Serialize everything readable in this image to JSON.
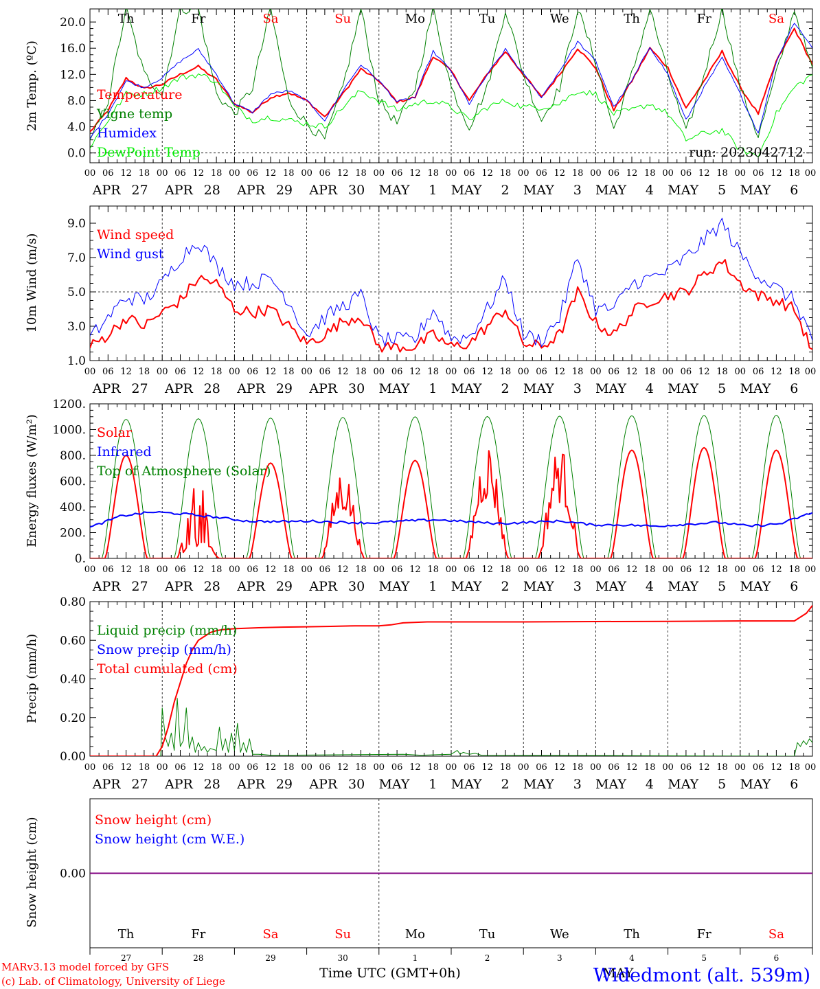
{
  "chart_data": [
    {
      "type": "line",
      "ylabel": "2m Temp. (ºC)",
      "ylim": [
        -1.5,
        22.0
      ],
      "yticks": [
        "0.0",
        "4.0",
        "8.0",
        "12.0",
        "16.0",
        "20.0"
      ],
      "ytick_values": [
        0,
        4,
        8,
        12,
        16,
        20
      ],
      "reference_line": 0,
      "day_of_week": [
        {
          "label": "Th",
          "color": "#000000"
        },
        {
          "label": "Fr",
          "color": "#000000"
        },
        {
          "label": "Sa",
          "color": "#ff0000"
        },
        {
          "label": "Su",
          "color": "#ff0000"
        },
        {
          "label": "Mo",
          "color": "#000000"
        },
        {
          "label": "Tu",
          "color": "#000000"
        },
        {
          "label": "We",
          "color": "#000000"
        },
        {
          "label": "Th",
          "color": "#000000"
        },
        {
          "label": "Fr",
          "color": "#000000"
        },
        {
          "label": "Sa",
          "color": "#ff0000"
        }
      ],
      "annotation": "run: 2023042712",
      "x": [
        0,
        6,
        12,
        18,
        24,
        30,
        36,
        42,
        48,
        54,
        60,
        66,
        72,
        78,
        84,
        90,
        96,
        102,
        108,
        114,
        120,
        126,
        132,
        138,
        144,
        150,
        156,
        162,
        168,
        174,
        180,
        186,
        192,
        198,
        204,
        210,
        216,
        222,
        228,
        234,
        240
      ],
      "series": [
        {
          "name": "Temperature",
          "color": "#ff0000",
          "width": 2,
          "values": [
            3.2,
            6.5,
            11.4,
            9.8,
            10.5,
            12.0,
            13.2,
            11.2,
            7.5,
            6.2,
            8.5,
            9.2,
            8.0,
            5.5,
            9.0,
            12.8,
            11.0,
            7.8,
            8.5,
            14.8,
            12.5,
            8.0,
            12.0,
            15.5,
            12.0,
            8.5,
            12.0,
            16.0,
            13.0,
            6.5,
            11.0,
            16.0,
            13.0,
            6.8,
            11.0,
            15.5,
            10.0,
            6.0,
            14.0,
            19.0,
            13.5
          ]
        },
        {
          "name": "Vigne temp",
          "color": "#008000",
          "width": 1,
          "values": [
            1.5,
            8.0,
            22.0,
            12.0,
            9.0,
            22.0,
            22.0,
            9.0,
            6.0,
            10.0,
            22.0,
            8.0,
            4.5,
            2.0,
            10.0,
            22.0,
            8.0,
            4.5,
            10.0,
            22.0,
            10.0,
            4.0,
            10.0,
            22.0,
            12.0,
            5.0,
            10.0,
            22.0,
            14.0,
            3.5,
            12.0,
            22.0,
            12.0,
            3.0,
            12.0,
            22.0,
            10.0,
            2.5,
            12.0,
            22.0,
            12.5
          ]
        },
        {
          "name": "Humidex",
          "color": "#0000ff",
          "width": 1,
          "values": [
            2.2,
            6.0,
            11.0,
            10.0,
            11.5,
            14.0,
            15.8,
            12.0,
            7.5,
            6.2,
            9.0,
            9.5,
            8.0,
            5.0,
            9.5,
            13.5,
            11.0,
            7.8,
            8.5,
            15.5,
            12.5,
            7.5,
            12.0,
            15.8,
            12.0,
            8.5,
            12.5,
            17.0,
            14.0,
            7.0,
            11.0,
            16.2,
            12.0,
            5.0,
            10.0,
            14.5,
            9.0,
            3.0,
            14.0,
            20.0,
            16.0
          ]
        },
        {
          "name": "DewPoint Temp",
          "color": "#00ee00",
          "width": 1,
          "values": [
            1.0,
            5.0,
            9.0,
            9.0,
            10.0,
            11.5,
            12.0,
            11.0,
            7.0,
            5.0,
            5.5,
            5.0,
            4.5,
            4.0,
            7.0,
            9.5,
            8.0,
            6.5,
            7.5,
            8.0,
            7.0,
            5.0,
            7.0,
            8.0,
            7.0,
            7.0,
            7.5,
            9.5,
            9.0,
            6.0,
            6.5,
            7.5,
            6.0,
            2.0,
            3.0,
            3.5,
            0.5,
            -0.5,
            6.0,
            10.0,
            12.0
          ]
        }
      ]
    },
    {
      "type": "line",
      "ylabel": "10m Wind (m/s)",
      "ylim": [
        1.0,
        10.0
      ],
      "yticks": [
        "1.0",
        "3.0",
        "5.0",
        "7.0",
        "9.0"
      ],
      "ytick_values": [
        1,
        3,
        5,
        7,
        9
      ],
      "reference_line": 5,
      "x": [
        0,
        6,
        12,
        18,
        24,
        30,
        36,
        42,
        48,
        54,
        60,
        66,
        72,
        78,
        84,
        90,
        96,
        102,
        108,
        114,
        120,
        126,
        132,
        138,
        144,
        150,
        156,
        162,
        168,
        174,
        180,
        186,
        192,
        198,
        204,
        210,
        216,
        222,
        228,
        234,
        240
      ],
      "series": [
        {
          "name": "Wind speed",
          "color": "#ff0000",
          "width": 2,
          "values": [
            1.8,
            2.5,
            3.5,
            3.0,
            3.8,
            4.5,
            5.8,
            5.5,
            4.0,
            3.8,
            4.0,
            3.0,
            2.0,
            2.5,
            3.3,
            3.6,
            1.8,
            1.8,
            1.8,
            2.5,
            1.8,
            2.0,
            3.0,
            4.0,
            2.0,
            1.8,
            2.5,
            5.0,
            3.2,
            2.5,
            3.8,
            4.5,
            4.8,
            5.0,
            6.0,
            6.8,
            5.5,
            4.8,
            4.5,
            4.0,
            1.5
          ]
        },
        {
          "name": "Wind gust",
          "color": "#0000ff",
          "width": 1,
          "values": [
            2.3,
            3.5,
            4.7,
            4.5,
            5.5,
            7.0,
            8.0,
            6.5,
            5.5,
            5.5,
            5.8,
            4.5,
            2.5,
            3.5,
            4.2,
            4.8,
            2.2,
            2.2,
            2.2,
            4.0,
            2.3,
            2.4,
            4.0,
            5.8,
            2.5,
            2.2,
            3.5,
            7.0,
            4.0,
            4.0,
            5.5,
            5.8,
            6.2,
            7.0,
            8.0,
            9.0,
            7.2,
            6.0,
            5.2,
            4.5,
            2.3
          ]
        }
      ]
    },
    {
      "type": "line",
      "ylabel": "Energy fluxes (W/m²)",
      "ylim": [
        0,
        1200
      ],
      "yticks": [
        "0.",
        "200.",
        "400.",
        "600.",
        "800.",
        "1000.",
        "1200."
      ],
      "ytick_values": [
        0,
        200,
        400,
        600,
        800,
        1000,
        1200
      ],
      "toa_peaks": [
        1080,
        1085,
        1090,
        1095,
        1100,
        1102,
        1105,
        1108,
        1110,
        1112
      ],
      "solar_peaks": [
        800,
        570,
        740,
        620,
        760,
        800,
        780,
        840,
        860,
        840
      ],
      "infrared_values": [
        240,
        330,
        360,
        345,
        320,
        290,
        285,
        290,
        280,
        275,
        290,
        300,
        285,
        270,
        280,
        290,
        260,
        260,
        250,
        265,
        280,
        250,
        270,
        355
      ],
      "series": [
        {
          "name": "Solar",
          "color": "#ff0000",
          "width": 2
        },
        {
          "name": "Infrared",
          "color": "#0000ff",
          "width": 2
        },
        {
          "name": "Top of Atmosphere (Solar)",
          "color": "#008000",
          "width": 1
        }
      ]
    },
    {
      "type": "line",
      "ylabel": "Precip (mm/h)",
      "ylim": [
        0.0,
        0.8
      ],
      "yticks": [
        "0.00",
        "0.20",
        "0.40",
        "0.60",
        "0.80"
      ],
      "ytick_values": [
        0.0,
        0.2,
        0.4,
        0.6,
        0.8
      ],
      "x": [
        0,
        22,
        24,
        26,
        28,
        30,
        32,
        34,
        36,
        38,
        40,
        42,
        44,
        48,
        56,
        64,
        72,
        80,
        88,
        96,
        100,
        104,
        112,
        120,
        132,
        144,
        168,
        192,
        216,
        228,
        234,
        238,
        240
      ],
      "series": [
        {
          "name": "Liquid precip (mm/h)",
          "color": "#008000",
          "width": 1
        },
        {
          "name": "Snow precip (mm/h)",
          "color": "#0000ff",
          "width": 1
        },
        {
          "name": "Total cumulated (cm)",
          "color": "#ff0000",
          "width": 2,
          "values": [
            0.0,
            0.0,
            0.05,
            0.15,
            0.28,
            0.38,
            0.48,
            0.55,
            0.6,
            0.62,
            0.64,
            0.65,
            0.655,
            0.66,
            0.665,
            0.668,
            0.67,
            0.672,
            0.675,
            0.675,
            0.68,
            0.69,
            0.695,
            0.695,
            0.695,
            0.695,
            0.697,
            0.698,
            0.7,
            0.7,
            0.7,
            0.74,
            0.78
          ]
        }
      ],
      "liquid_spikes": [
        [
          23.5,
          0.0
        ],
        [
          24,
          0.25
        ],
        [
          25,
          0.1
        ],
        [
          26,
          0.05
        ],
        [
          27,
          0.12
        ],
        [
          28,
          0.03
        ],
        [
          29,
          0.3
        ],
        [
          30,
          0.05
        ],
        [
          31,
          0.08
        ],
        [
          32,
          0.25
        ],
        [
          33,
          0.04
        ],
        [
          34,
          0.1
        ],
        [
          35,
          0.02
        ],
        [
          36,
          0.07
        ],
        [
          37,
          0.03
        ],
        [
          38,
          0.05
        ],
        [
          39,
          0.02
        ],
        [
          40,
          0.04
        ],
        [
          42,
          0.03
        ],
        [
          43,
          0.15
        ],
        [
          44,
          0.03
        ],
        [
          45,
          0.09
        ],
        [
          46,
          0.02
        ],
        [
          47,
          0.12
        ],
        [
          48,
          0.03
        ],
        [
          49,
          0.17
        ],
        [
          50,
          0.02
        ],
        [
          51,
          0.07
        ],
        [
          52,
          0.02
        ],
        [
          53,
          0.09
        ],
        [
          54,
          0.01
        ],
        [
          56,
          0.01
        ],
        [
          60,
          0.005
        ],
        [
          64,
          0.005
        ],
        [
          104,
          0.01
        ],
        [
          110,
          0.005
        ],
        [
          120,
          0.01
        ],
        [
          122,
          0.03
        ],
        [
          123,
          0.01
        ],
        [
          124,
          0.02
        ],
        [
          126,
          0.01
        ],
        [
          128,
          0.015
        ],
        [
          130,
          0.005
        ],
        [
          234,
          0.0
        ],
        [
          235,
          0.07
        ],
        [
          236,
          0.05
        ],
        [
          237,
          0.08
        ],
        [
          238,
          0.06
        ],
        [
          239,
          0.09
        ],
        [
          240,
          0.07
        ]
      ]
    },
    {
      "type": "line",
      "ylabel": "Snow height (cm)",
      "ylim": [
        -1.0,
        1.0
      ],
      "yticks": [
        "0.00"
      ],
      "ytick_values": [
        0.0
      ],
      "series": [
        {
          "name": "Snow height (cm)",
          "color": "#ff0000",
          "width": 2,
          "values": [
            0.0,
            0.0
          ]
        },
        {
          "name": "Snow height (cm W.E.)",
          "color": "#0000ff",
          "width": 2,
          "values": [
            0.0,
            0.0
          ]
        }
      ],
      "combined_line_color": "#800080",
      "day_of_week": [
        {
          "label": "Th",
          "color": "#000000"
        },
        {
          "label": "Fr",
          "color": "#000000"
        },
        {
          "label": "Sa",
          "color": "#ff0000"
        },
        {
          "label": "Su",
          "color": "#ff0000"
        },
        {
          "label": "Mo",
          "color": "#000000"
        },
        {
          "label": "Tu",
          "color": "#000000"
        },
        {
          "label": "We",
          "color": "#000000"
        },
        {
          "label": "Th",
          "color": "#000000"
        },
        {
          "label": "Fr",
          "color": "#000000"
        },
        {
          "label": "Sa",
          "color": "#ff0000"
        }
      ],
      "day_numbers": [
        "27",
        "28",
        "29",
        "30",
        "1",
        "2",
        "3",
        "4",
        "5",
        "6"
      ],
      "month_label": "MAY"
    }
  ],
  "x_axis": {
    "hour_ticks": [
      "00",
      "06",
      "12",
      "18"
    ],
    "end_tick": "00",
    "days": [
      {
        "month": "APR",
        "day": "27"
      },
      {
        "month": "APR",
        "day": "28"
      },
      {
        "month": "APR",
        "day": "29"
      },
      {
        "month": "APR",
        "day": "30"
      },
      {
        "month": "MAY",
        "day": "1"
      },
      {
        "month": "MAY",
        "day": "2"
      },
      {
        "month": "MAY",
        "day": "3"
      },
      {
        "month": "MAY",
        "day": "4"
      },
      {
        "month": "MAY",
        "day": "5"
      },
      {
        "month": "MAY",
        "day": "6"
      }
    ],
    "xlabel": "Time UTC (GMT+0h)"
  },
  "footer": {
    "credit_line1": "MARv3.13 model forced by GFS",
    "credit_line2": "(c) Lab. of Climatology, University of Liege",
    "credit_color": "#ff0000",
    "station": "Widedmont (alt. 539m)",
    "station_color": "#0000ff"
  }
}
